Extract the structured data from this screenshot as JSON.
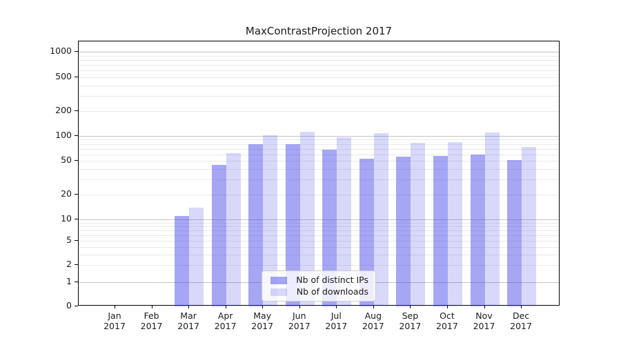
{
  "chart_data": {
    "type": "bar",
    "title": "MaxContrastProjection 2017",
    "categories": [
      "Jan 2017",
      "Feb 2017",
      "Mar 2017",
      "Apr 2017",
      "May 2017",
      "Jun 2017",
      "Jul 2017",
      "Aug 2017",
      "Sep 2017",
      "Oct 2017",
      "Nov 2017",
      "Dec 2017"
    ],
    "series": [
      {
        "name": "Nb of distinct IPs",
        "color": "#4646eb",
        "alpha": 0.48,
        "values": [
          0,
          0,
          11,
          45,
          79,
          80,
          68,
          53,
          56,
          57,
          60,
          51
        ]
      },
      {
        "name": "Nb of downloads",
        "color": "#4646eb",
        "alpha": 0.21,
        "values": [
          0,
          0,
          14,
          62,
          102,
          112,
          96,
          109,
          82,
          84,
          110,
          74
        ]
      }
    ],
    "yticks": [
      0,
      1,
      2,
      5,
      10,
      20,
      50,
      100,
      200,
      500,
      1000
    ],
    "yscale": "symlog",
    "ylim": [
      0,
      1000
    ],
    "grid": true,
    "gridline_major_color": "#c3c3c3",
    "gridline_minor_color": "#e9e9e9",
    "legend_position": "lower center"
  }
}
